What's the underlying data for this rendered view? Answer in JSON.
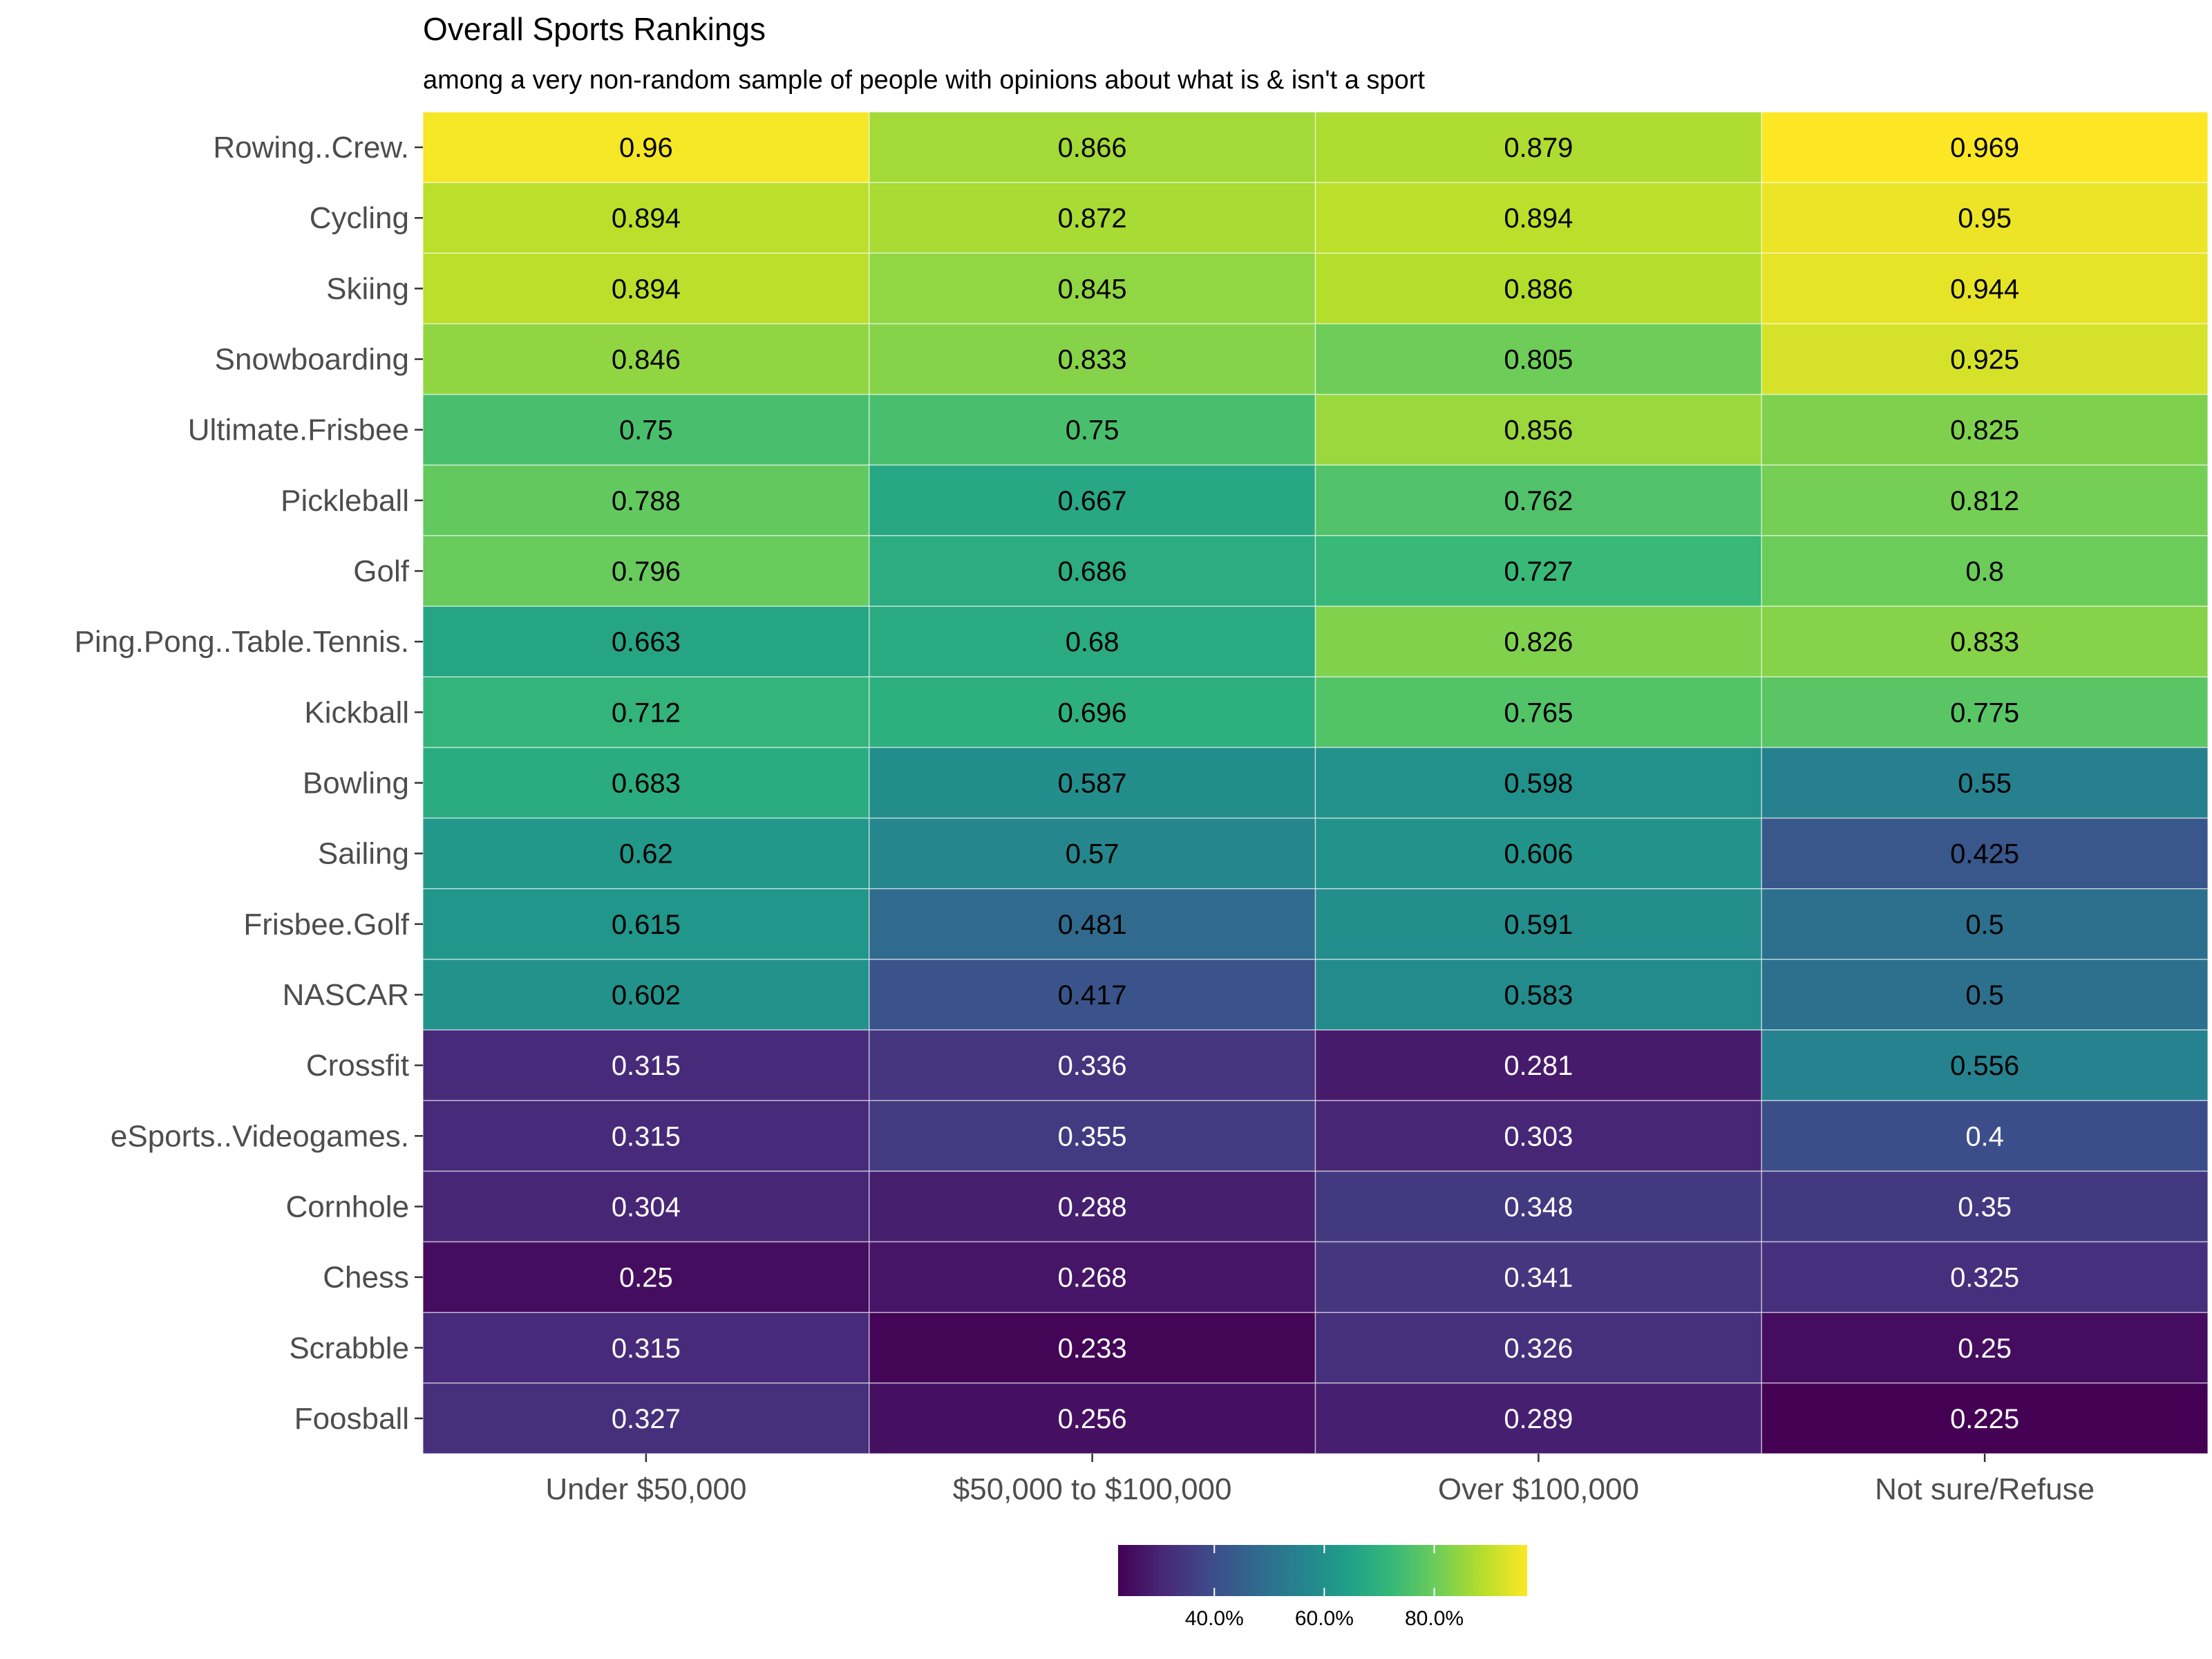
{
  "chart_data": {
    "type": "heatmap",
    "title": "Overall Sports Rankings",
    "subtitle": "among a very non-random sample of people with opinions about what is & isn't a sport",
    "xlabel": "",
    "ylabel": "",
    "columns": [
      "Under $50,000",
      "$50,000 to $100,000",
      "Over $100,000",
      "Not sure/Refuse"
    ],
    "rows": [
      "Rowing..Crew.",
      "Cycling",
      "Skiing",
      "Snowboarding",
      "Ultimate.Frisbee",
      "Pickleball",
      "Golf",
      "Ping.Pong..Table.Tennis.",
      "Kickball",
      "Bowling",
      "Sailing",
      "Frisbee.Golf",
      "NASCAR",
      "Crossfit",
      "eSports..Videogames.",
      "Cornhole",
      "Chess",
      "Scrabble",
      "Foosball"
    ],
    "values": [
      [
        0.96,
        0.866,
        0.879,
        0.969
      ],
      [
        0.894,
        0.872,
        0.894,
        0.95
      ],
      [
        0.894,
        0.845,
        0.886,
        0.944
      ],
      [
        0.846,
        0.833,
        0.805,
        0.925
      ],
      [
        0.75,
        0.75,
        0.856,
        0.825
      ],
      [
        0.788,
        0.667,
        0.762,
        0.812
      ],
      [
        0.796,
        0.686,
        0.727,
        0.8
      ],
      [
        0.663,
        0.68,
        0.826,
        0.833
      ],
      [
        0.712,
        0.696,
        0.765,
        0.775
      ],
      [
        0.683,
        0.587,
        0.598,
        0.55
      ],
      [
        0.62,
        0.57,
        0.606,
        0.425
      ],
      [
        0.615,
        0.481,
        0.591,
        0.5
      ],
      [
        0.602,
        0.417,
        0.583,
        0.5
      ],
      [
        0.315,
        0.336,
        0.281,
        0.556
      ],
      [
        0.315,
        0.355,
        0.303,
        0.4
      ],
      [
        0.304,
        0.288,
        0.348,
        0.35
      ],
      [
        0.25,
        0.268,
        0.341,
        0.325
      ],
      [
        0.315,
        0.233,
        0.326,
        0.25
      ],
      [
        0.327,
        0.256,
        0.289,
        0.225
      ]
    ],
    "value_labels": [
      [
        "0.96",
        "0.866",
        "0.879",
        "0.969"
      ],
      [
        "0.894",
        "0.872",
        "0.894",
        "0.95"
      ],
      [
        "0.894",
        "0.845",
        "0.886",
        "0.944"
      ],
      [
        "0.846",
        "0.833",
        "0.805",
        "0.925"
      ],
      [
        "0.75",
        "0.75",
        "0.856",
        "0.825"
      ],
      [
        "0.788",
        "0.667",
        "0.762",
        "0.812"
      ],
      [
        "0.796",
        "0.686",
        "0.727",
        "0.8"
      ],
      [
        "0.663",
        "0.68",
        "0.826",
        "0.833"
      ],
      [
        "0.712",
        "0.696",
        "0.765",
        "0.775"
      ],
      [
        "0.683",
        "0.587",
        "0.598",
        "0.55"
      ],
      [
        "0.62",
        "0.57",
        "0.606",
        "0.425"
      ],
      [
        "0.615",
        "0.481",
        "0.591",
        "0.5"
      ],
      [
        "0.602",
        "0.417",
        "0.583",
        "0.5"
      ],
      [
        "0.315",
        "0.336",
        "0.281",
        "0.556"
      ],
      [
        "0.315",
        "0.355",
        "0.303",
        "0.4"
      ],
      [
        "0.304",
        "0.288",
        "0.348",
        "0.35"
      ],
      [
        "0.25",
        "0.268",
        "0.341",
        "0.325"
      ],
      [
        "0.315",
        "0.233",
        "0.326",
        "0.25"
      ],
      [
        "0.327",
        "0.256",
        "0.289",
        "0.225"
      ]
    ],
    "color_scale": {
      "name": "viridis",
      "domain": [
        0.225,
        0.969
      ],
      "stops": [
        "#440154",
        "#482878",
        "#3E4A89",
        "#31688E",
        "#26828E",
        "#1F9E89",
        "#35B779",
        "#6DCD59",
        "#B4DE2C",
        "#FDE725"
      ]
    },
    "legend": {
      "position": "bottom",
      "ticks": [
        0.4,
        0.6,
        0.8
      ],
      "tick_labels": [
        "40.0%",
        "60.0%",
        "80.0%"
      ]
    },
    "grid": false
  }
}
